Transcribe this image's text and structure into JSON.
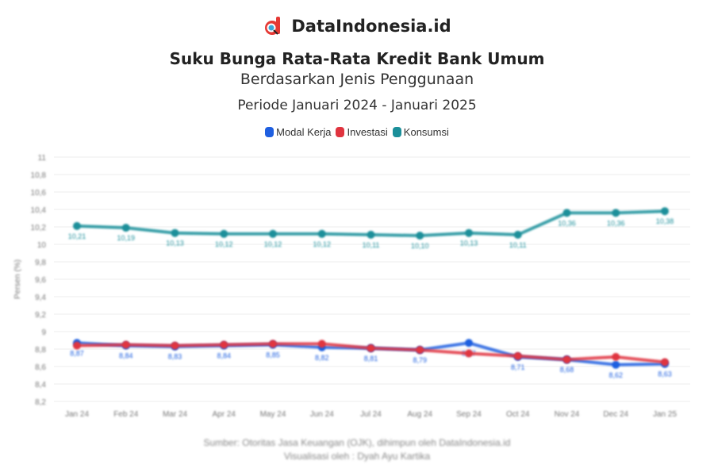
{
  "brand": {
    "name": "DataIndonesia.id",
    "logo_color": "#e53935"
  },
  "title": "Suku Bunga Rata-Rata Kredit Bank Umum",
  "subtitle": "Berdasarkan Jenis Penggunaan",
  "period": "Periode Januari 2024 - Januari 2025",
  "legend": [
    {
      "label": "Modal Kerja",
      "color": "#1f5fe0"
    },
    {
      "label": "Investasi",
      "color": "#e0343f"
    },
    {
      "label": "Konsumsi",
      "color": "#1b8f9a"
    }
  ],
  "footer": {
    "source": "Sumber: Otoritas Jasa Keuangan (OJK), dihimpun oleh DataIndonesia.id",
    "credit": "Visualisasi oleh : Dyah Ayu Kartika"
  },
  "chart_data": {
    "type": "line",
    "title": "Suku Bunga Rata-Rata Kredit Bank Umum",
    "subtitle": "Berdasarkan Jenis Penggunaan — Periode Januari 2024 - Januari 2025",
    "xlabel": "",
    "ylabel": "Persen (%)",
    "ylim": [
      8.2,
      11
    ],
    "yticks": [
      "11",
      "10,8",
      "10,6",
      "10,4",
      "10,2",
      "10",
      "9,8",
      "9,6",
      "9,4",
      "9,2",
      "9",
      "8,8",
      "8,6",
      "8,4",
      "8,2"
    ],
    "grid": true,
    "legend_position": "top",
    "categories": [
      "Jan 24",
      "Feb 24",
      "Mar 24",
      "Apr 24",
      "May 24",
      "Jun 24",
      "Jul 24",
      "Aug 24",
      "Sep 24",
      "Oct 24",
      "Nov 24",
      "Dec 24",
      "Jan 25"
    ],
    "series": [
      {
        "name": "Modal Kerja",
        "color": "#1f5fe0",
        "values": [
          8.87,
          8.84,
          8.83,
          8.84,
          8.85,
          8.82,
          8.81,
          8.79,
          8.87,
          8.71,
          8.68,
          8.62,
          8.63
        ]
      },
      {
        "name": "Investasi",
        "color": "#e0343f",
        "values": [
          8.84,
          8.85,
          8.84,
          8.85,
          8.86,
          8.86,
          8.81,
          8.79,
          8.75,
          8.72,
          8.68,
          8.71,
          8.65
        ]
      },
      {
        "name": "Konsumsi",
        "color": "#1b8f9a",
        "values": [
          10.21,
          10.19,
          10.13,
          10.12,
          10.12,
          10.12,
          10.11,
          10.1,
          10.13,
          10.11,
          10.36,
          10.36,
          10.38
        ]
      }
    ]
  }
}
